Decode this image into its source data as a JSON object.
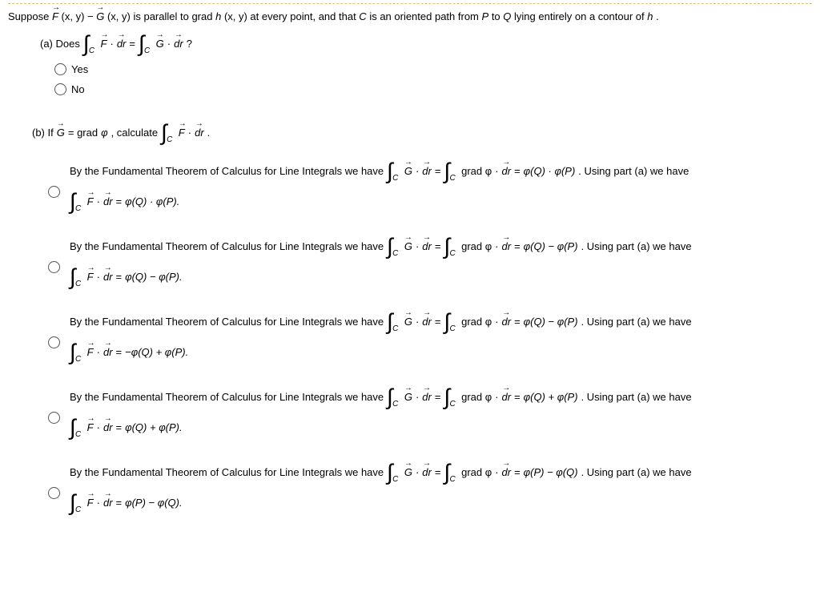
{
  "problem": {
    "prefix": "Suppose ",
    "F": "F",
    "xy1": "(x, y) − ",
    "G": "G",
    "xy2": "(x, y) is parallel to grad ",
    "h": "h",
    "xy3": "(x, y) at every point, and that ",
    "C": "C",
    "mid": " is an oriented path from ",
    "P": "P",
    "to": " to ",
    "Q": "Q",
    "tail": " lying entirely on a contour of ",
    "h2": "h",
    "end": "."
  },
  "partA": {
    "label": "(a) Does",
    "dot": " · ",
    "dr": "dr",
    "eq": " = ",
    "q": "?",
    "yes": "Yes",
    "no": "No"
  },
  "partB": {
    "prefix": "(b) If ",
    "G": "G",
    "mid": " = grad ",
    "phi": "φ",
    "calc": ", calculate ",
    "dot": " · ",
    "dr": "dr",
    "end": "."
  },
  "common": {
    "ftcPrefix": "By the Fundamental Theorem of Calculus for Line Integrals we have",
    "gradphi": "grad φ",
    "dot": " · ",
    "dr": "dr",
    "eq": " = ",
    "usingA": ". Using part (a) we have"
  },
  "options": [
    {
      "rhs1": "φ(Q) · φ(P)",
      "rhs2": "φ(Q) · φ(P)."
    },
    {
      "rhs1": "φ(Q) − φ(P)",
      "rhs2": "φ(Q) − φ(P)."
    },
    {
      "rhs1": "φ(Q) − φ(P)",
      "rhs2": "−φ(Q) + φ(P)."
    },
    {
      "rhs1": "φ(Q) + φ(P)",
      "rhs2": "φ(Q) + φ(P)."
    },
    {
      "rhs1": "φ(P) − φ(Q)",
      "rhs2": "φ(P) − φ(Q)."
    }
  ]
}
